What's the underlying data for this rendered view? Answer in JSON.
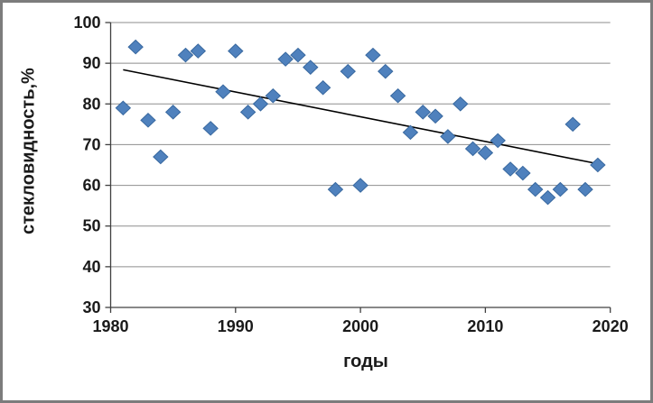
{
  "chart_data": {
    "type": "scatter",
    "xlabel": "годы",
    "ylabel": "стекловидность,%",
    "xlim": [
      1980,
      2020
    ],
    "ylim": [
      30,
      100
    ],
    "x_ticks": [
      1980,
      1990,
      2000,
      2010,
      2020
    ],
    "y_ticks": [
      30,
      40,
      50,
      60,
      70,
      80,
      90,
      100
    ],
    "grid": "horizontal",
    "legend": "none",
    "marker": "diamond",
    "points": [
      [
        1981,
        79
      ],
      [
        1982,
        94
      ],
      [
        1983,
        76
      ],
      [
        1984,
        67
      ],
      [
        1985,
        78
      ],
      [
        1986,
        92
      ],
      [
        1987,
        93
      ],
      [
        1988,
        74
      ],
      [
        1989,
        83
      ],
      [
        1990,
        93
      ],
      [
        1991,
        78
      ],
      [
        1992,
        80
      ],
      [
        1993,
        82
      ],
      [
        1994,
        91
      ],
      [
        1995,
        92
      ],
      [
        1996,
        89
      ],
      [
        1997,
        84
      ],
      [
        1998,
        59
      ],
      [
        1999,
        88
      ],
      [
        2000,
        60
      ],
      [
        2001,
        92
      ],
      [
        2002,
        88
      ],
      [
        2003,
        82
      ],
      [
        2004,
        73
      ],
      [
        2005,
        78
      ],
      [
        2006,
        77
      ],
      [
        2007,
        72
      ],
      [
        2008,
        80
      ],
      [
        2009,
        69
      ],
      [
        2010,
        68
      ],
      [
        2011,
        71
      ],
      [
        2012,
        64
      ],
      [
        2013,
        63
      ],
      [
        2014,
        59
      ],
      [
        2015,
        57
      ],
      [
        2016,
        59
      ],
      [
        2017,
        75
      ],
      [
        2018,
        59
      ],
      [
        2019,
        65
      ]
    ],
    "trend_line": {
      "from": [
        1981,
        88.4
      ],
      "to": [
        2019,
        65.3
      ]
    },
    "colors": {
      "marker": "#4f81bd",
      "marker_border": "#38689f",
      "trend_line": "#000000",
      "gridline": "#8e8e8e",
      "axis": "#404040",
      "tick_label": "#1a1a1a",
      "frame_border": "#7c7c7c"
    }
  }
}
